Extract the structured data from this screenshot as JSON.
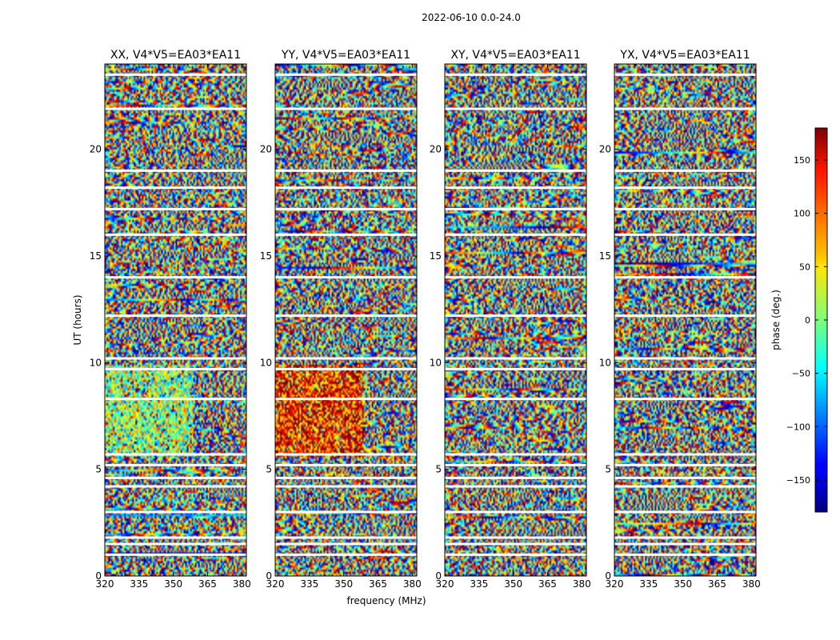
{
  "figure": {
    "suptitle": "2022-06-10 0.0-24.0"
  },
  "chart_data": {
    "type": "heatmap",
    "colormap": "jet",
    "xlabel": "frequency (MHz)",
    "ylabel": "UT (hours)",
    "xlim": [
      320,
      382
    ],
    "ylim": [
      0,
      24
    ],
    "xticks": [
      320,
      335,
      350,
      365,
      380
    ],
    "yticks": [
      0,
      5,
      10,
      15,
      20
    ],
    "panels": [
      {
        "title": "XX, V4*V5=EA03*EA11",
        "pol": "XX"
      },
      {
        "title": "YY, V4*V5=EA03*EA11",
        "pol": "YY"
      },
      {
        "title": "XY, V4*V5=EA03*EA11",
        "pol": "XY"
      },
      {
        "title": "YX, V4*V5=EA03*EA11",
        "pol": "YX"
      }
    ],
    "colorbar": {
      "label": "phase (deg.)",
      "range": [
        -180,
        180
      ],
      "ticks": [
        -150,
        -100,
        -50,
        0,
        50,
        100,
        150
      ]
    },
    "blank_rows_ut": [
      23.5,
      21.9,
      19.0,
      18.2,
      17.2,
      16.0,
      14.0,
      12.2,
      10.2,
      9.7,
      8.3,
      5.7,
      5.2,
      4.6,
      4.2,
      3.0,
      1.8,
      1.5,
      1.0
    ]
  }
}
